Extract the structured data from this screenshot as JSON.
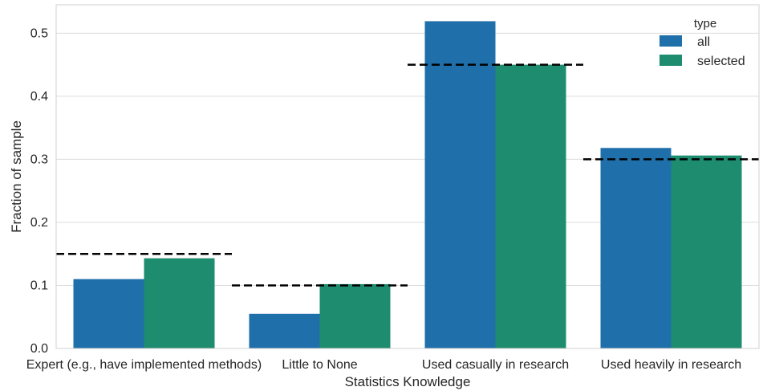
{
  "chart_data": {
    "type": "bar",
    "title": "",
    "xlabel": "Statistics Knowledge",
    "ylabel": "Fraction of sample",
    "categories": [
      "Expert (e.g., have implemented methods)",
      "Little to None",
      "Used casually in research",
      "Used heavily in research"
    ],
    "series": [
      {
        "name": "all",
        "color": "#1f6fab",
        "values": [
          0.11,
          0.055,
          0.519,
          0.318
        ]
      },
      {
        "name": "selected",
        "color": "#1e8c6e",
        "values": [
          0.143,
          0.102,
          0.45,
          0.306
        ]
      }
    ],
    "reference_lines": [
      0.15,
      0.1,
      0.45,
      0.3
    ],
    "ylim": [
      0,
      0.545
    ],
    "yticks": [
      0.0,
      0.1,
      0.2,
      0.3,
      0.4,
      0.5
    ],
    "ytick_labels": [
      "0.0",
      "0.1",
      "0.2",
      "0.3",
      "0.4",
      "0.5"
    ],
    "grid": "horizontal",
    "legend": {
      "title": "type",
      "position": "top-right"
    }
  }
}
